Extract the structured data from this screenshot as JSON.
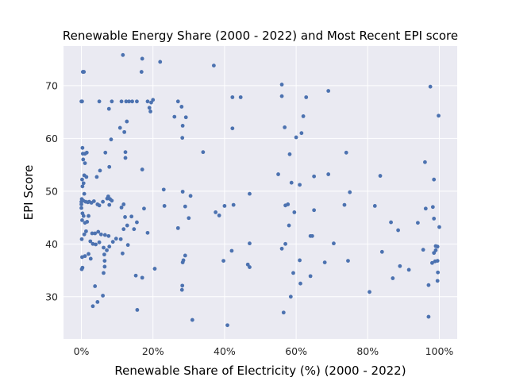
{
  "chart_data": {
    "type": "scatter",
    "title": "Renewable Energy Share (2000 - 2022) and Most Recent EPI score",
    "xlabel": "Renewable Share of Electricity (%) (2000 - 2022)",
    "ylabel": "EPI Score",
    "xlim": [
      -0.05,
      1.05
    ],
    "ylim": [
      22,
      77.5
    ],
    "xticks": [
      0,
      0.2,
      0.4,
      0.6,
      0.8,
      1.0
    ],
    "xtick_labels": [
      "0%",
      "20%",
      "40%",
      "60%",
      "80%",
      "100%"
    ],
    "yticks": [
      30,
      40,
      50,
      60,
      70
    ],
    "ytick_labels": [
      "30",
      "40",
      "50",
      "60",
      "70"
    ],
    "grid": true,
    "background": "#EAEAF2",
    "grid_color": "#FFFFFF",
    "point_color": "#4C72B0",
    "points": [
      [
        0.004,
        72.6
      ],
      [
        0.007,
        72.6
      ],
      [
        0.0,
        67.0
      ],
      [
        0.002,
        67.0
      ],
      [
        0.003,
        58.2
      ],
      [
        0.004,
        57.1
      ],
      [
        0.01,
        57.1
      ],
      [
        0.015,
        57.3
      ],
      [
        0.005,
        56.0
      ],
      [
        0.01,
        55.3
      ],
      [
        0.008,
        53.0
      ],
      [
        0.014,
        52.7
      ],
      [
        0.002,
        52.2
      ],
      [
        0.006,
        51.5
      ],
      [
        0.003,
        50.9
      ],
      [
        0.008,
        49.5
      ],
      [
        0.001,
        48.5
      ],
      [
        0.0,
        48.0
      ],
      [
        0.0,
        47.5
      ],
      [
        0.005,
        48.2
      ],
      [
        0.012,
        48.0
      ],
      [
        0.018,
        47.9
      ],
      [
        0.022,
        48.0
      ],
      [
        0.028,
        47.8
      ],
      [
        0.035,
        48.1
      ],
      [
        0.045,
        47.5
      ],
      [
        0.05,
        47.3
      ],
      [
        0.06,
        48.0
      ],
      [
        0.072,
        48.6
      ],
      [
        0.075,
        49.0
      ],
      [
        0.08,
        48.5
      ],
      [
        0.085,
        48.2
      ],
      [
        0.078,
        47.4
      ],
      [
        0.0,
        46.8
      ],
      [
        0.003,
        45.8
      ],
      [
        0.006,
        45.3
      ],
      [
        0.002,
        44.5
      ],
      [
        0.01,
        44.0
      ],
      [
        0.016,
        44.2
      ],
      [
        0.02,
        45.3
      ],
      [
        0.001,
        40.9
      ],
      [
        0.008,
        41.8
      ],
      [
        0.013,
        42.4
      ],
      [
        0.025,
        40.5
      ],
      [
        0.03,
        42.0
      ],
      [
        0.038,
        42.0
      ],
      [
        0.047,
        42.3
      ],
      [
        0.055,
        41.8
      ],
      [
        0.066,
        41.7
      ],
      [
        0.076,
        41.5
      ],
      [
        0.088,
        40.4
      ],
      [
        0.097,
        41.0
      ],
      [
        0.11,
        40.9
      ],
      [
        0.118,
        42.8
      ],
      [
        0.128,
        43.5
      ],
      [
        0.032,
        40.0
      ],
      [
        0.04,
        39.9
      ],
      [
        0.05,
        40.3
      ],
      [
        0.062,
        39.3
      ],
      [
        0.064,
        38.0
      ],
      [
        0.071,
        38.8
      ],
      [
        0.078,
        39.5
      ],
      [
        0.002,
        37.5
      ],
      [
        0.01,
        37.7
      ],
      [
        0.02,
        38.1
      ],
      [
        0.026,
        37.2
      ],
      [
        0.115,
        38.2
      ],
      [
        0.13,
        39.8
      ],
      [
        0.003,
        35.5
      ],
      [
        0.001,
        35.2
      ],
      [
        0.065,
        36.8
      ],
      [
        0.065,
        35.7
      ],
      [
        0.062,
        34.5
      ],
      [
        0.06,
        30.2
      ],
      [
        0.038,
        32.0
      ],
      [
        0.032,
        28.2
      ],
      [
        0.045,
        29.0
      ],
      [
        0.116,
        75.8
      ],
      [
        0.17,
        75.1
      ],
      [
        0.22,
        74.5
      ],
      [
        0.168,
        72.6
      ],
      [
        0.05,
        67.0
      ],
      [
        0.085,
        67.0
      ],
      [
        0.112,
        67.0
      ],
      [
        0.125,
        67.0
      ],
      [
        0.133,
        67.0
      ],
      [
        0.142,
        67.0
      ],
      [
        0.155,
        67.0
      ],
      [
        0.185,
        67.0
      ],
      [
        0.195,
        66.8
      ],
      [
        0.2,
        67.3
      ],
      [
        0.19,
        65.8
      ],
      [
        0.193,
        65.1
      ],
      [
        0.077,
        65.6
      ],
      [
        0.127,
        63.2
      ],
      [
        0.108,
        62.0
      ],
      [
        0.12,
        61.2
      ],
      [
        0.083,
        59.8
      ],
      [
        0.123,
        57.4
      ],
      [
        0.123,
        56.3
      ],
      [
        0.067,
        57.3
      ],
      [
        0.078,
        54.6
      ],
      [
        0.17,
        54.1
      ],
      [
        0.052,
        53.9
      ],
      [
        0.043,
        52.7
      ],
      [
        0.23,
        50.3
      ],
      [
        0.118,
        47.5
      ],
      [
        0.112,
        46.9
      ],
      [
        0.175,
        46.7
      ],
      [
        0.122,
        45.1
      ],
      [
        0.14,
        45.2
      ],
      [
        0.155,
        44.1
      ],
      [
        0.147,
        42.8
      ],
      [
        0.185,
        42.1
      ],
      [
        0.17,
        33.6
      ],
      [
        0.152,
        34.0
      ],
      [
        0.156,
        27.5
      ],
      [
        0.205,
        35.3
      ],
      [
        0.26,
        64.1
      ],
      [
        0.27,
        67.0
      ],
      [
        0.28,
        66.0
      ],
      [
        0.283,
        62.4
      ],
      [
        0.292,
        64.0
      ],
      [
        0.282,
        60.1
      ],
      [
        0.232,
        47.2
      ],
      [
        0.283,
        49.9
      ],
      [
        0.305,
        49.1
      ],
      [
        0.29,
        47.1
      ],
      [
        0.3,
        44.9
      ],
      [
        0.27,
        43.0
      ],
      [
        0.29,
        37.8
      ],
      [
        0.285,
        36.9
      ],
      [
        0.283,
        36.5
      ],
      [
        0.282,
        32.1
      ],
      [
        0.281,
        31.3
      ],
      [
        0.31,
        25.6
      ],
      [
        0.34,
        57.4
      ],
      [
        0.37,
        73.8
      ],
      [
        0.375,
        46.0
      ],
      [
        0.385,
        45.4
      ],
      [
        0.4,
        47.2
      ],
      [
        0.397,
        36.8
      ],
      [
        0.408,
        24.6
      ],
      [
        0.422,
        67.8
      ],
      [
        0.445,
        67.8
      ],
      [
        0.422,
        61.9
      ],
      [
        0.425,
        47.4
      ],
      [
        0.42,
        38.7
      ],
      [
        0.47,
        49.5
      ],
      [
        0.47,
        40.1
      ],
      [
        0.465,
        36.1
      ],
      [
        0.47,
        35.6
      ],
      [
        0.56,
        70.2
      ],
      [
        0.56,
        68.0
      ],
      [
        0.55,
        53.2
      ],
      [
        0.568,
        62.1
      ],
      [
        0.582,
        57.0
      ],
      [
        0.587,
        51.6
      ],
      [
        0.57,
        47.3
      ],
      [
        0.577,
        47.5
      ],
      [
        0.58,
        43.5
      ],
      [
        0.595,
        46.0
      ],
      [
        0.56,
        39.1
      ],
      [
        0.57,
        40.0
      ],
      [
        0.565,
        27.0
      ],
      [
        0.592,
        34.5
      ],
      [
        0.585,
        30.0
      ],
      [
        0.6,
        60.2
      ],
      [
        0.615,
        61.0
      ],
      [
        0.61,
        51.2
      ],
      [
        0.628,
        67.8
      ],
      [
        0.64,
        41.5
      ],
      [
        0.645,
        41.5
      ],
      [
        0.65,
        46.4
      ],
      [
        0.65,
        52.8
      ],
      [
        0.64,
        33.9
      ],
      [
        0.61,
        36.9
      ],
      [
        0.612,
        32.5
      ],
      [
        0.62,
        64.2
      ],
      [
        0.69,
        69.0
      ],
      [
        0.69,
        53.2
      ],
      [
        0.68,
        36.5
      ],
      [
        0.705,
        40.1
      ],
      [
        0.735,
        47.4
      ],
      [
        0.74,
        57.3
      ],
      [
        0.75,
        49.8
      ],
      [
        0.745,
        36.8
      ],
      [
        0.805,
        30.9
      ],
      [
        0.82,
        47.2
      ],
      [
        0.835,
        52.9
      ],
      [
        0.84,
        38.5
      ],
      [
        0.865,
        44.1
      ],
      [
        0.87,
        33.5
      ],
      [
        0.885,
        42.6
      ],
      [
        0.89,
        35.8
      ],
      [
        0.915,
        35.1
      ],
      [
        0.94,
        44.0
      ],
      [
        0.955,
        38.9
      ],
      [
        0.96,
        55.5
      ],
      [
        0.962,
        46.7
      ],
      [
        0.97,
        26.2
      ],
      [
        0.97,
        32.2
      ],
      [
        0.975,
        69.8
      ],
      [
        0.982,
        47.0
      ],
      [
        0.98,
        36.4
      ],
      [
        0.985,
        38.3
      ],
      [
        0.985,
        44.8
      ],
      [
        0.985,
        52.2
      ],
      [
        0.99,
        38.8
      ],
      [
        0.99,
        39.6
      ],
      [
        0.995,
        39.5
      ],
      [
        0.995,
        36.8
      ],
      [
        0.995,
        33.0
      ],
      [
        1.0,
        43.2
      ],
      [
        0.998,
        64.3
      ],
      [
        0.988,
        36.7
      ],
      [
        0.996,
        34.6
      ]
    ]
  }
}
